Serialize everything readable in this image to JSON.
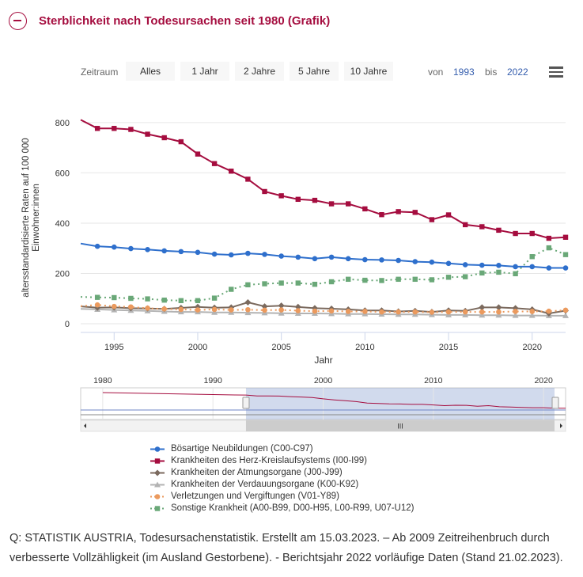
{
  "title": "Sterblichkeit nach Todesursachen seit 1980 (Grafik)",
  "range_selector": {
    "label": "Zeitraum",
    "buttons": [
      "Alles",
      "1 Jahr",
      "2 Jahre",
      "5 Jahre",
      "10 Jahre"
    ],
    "from_label": "von",
    "from_value": "1993",
    "to_label": "bis",
    "to_value": "2022"
  },
  "chart_data": {
    "type": "line",
    "xlabel": "Jahr",
    "ylabel": "altersstandardisierte Raten auf 100 000 Einwohner:innen",
    "xlim": [
      1993,
      2022
    ],
    "ylim": [
      0,
      850
    ],
    "x_ticks": [
      1995,
      2000,
      2005,
      2010,
      2015,
      2020
    ],
    "y_ticks": [
      0,
      200,
      400,
      600,
      800
    ],
    "x": [
      1993,
      1994,
      1995,
      1996,
      1997,
      1998,
      1999,
      2000,
      2001,
      2002,
      2003,
      2004,
      2005,
      2006,
      2007,
      2008,
      2009,
      2010,
      2011,
      2012,
      2013,
      2014,
      2015,
      2016,
      2017,
      2018,
      2019,
      2020,
      2021,
      2022
    ],
    "series": [
      {
        "name": "Bösartige Neubildungen (C00-C97)",
        "color": "#2e6fcc",
        "marker": "circle",
        "dash": false,
        "values": [
          322,
          311,
          308,
          302,
          298,
          293,
          290,
          287,
          280,
          277,
          283,
          279,
          272,
          268,
          262,
          268,
          262,
          258,
          257,
          255,
          250,
          248,
          243,
          238,
          236,
          235,
          230,
          230,
          225,
          225
        ]
      },
      {
        "name": "Krankheiten des Herz-Kreislaufsystems (I00-I99)",
        "color": "#a50d3f",
        "marker": "square",
        "dash": false,
        "values": [
          814,
          780,
          780,
          776,
          757,
          743,
          727,
          678,
          640,
          610,
          578,
          529,
          512,
          498,
          494,
          480,
          480,
          460,
          437,
          449,
          446,
          417,
          436,
          397,
          389,
          375,
          362,
          362,
          343,
          347
        ]
      },
      {
        "name": "Krankheiten der Atmungsorgane (J00-J99)",
        "color": "#7b6a5e",
        "marker": "diamond",
        "dash": false,
        "values": [
          72,
          67,
          68,
          65,
          64,
          62,
          66,
          70,
          67,
          68,
          88,
          72,
          75,
          70,
          65,
          63,
          60,
          56,
          56,
          52,
          54,
          50,
          56,
          54,
          68,
          68,
          65,
          60,
          44,
          55
        ]
      },
      {
        "name": "Krankheiten der Verdauungsorgane (K00-K92)",
        "color": "#b3b3b3",
        "marker": "triangle",
        "dash": false,
        "values": [
          62,
          60,
          58,
          56,
          54,
          52,
          50,
          50,
          48,
          48,
          47,
          46,
          45,
          44,
          44,
          43,
          42,
          42,
          41,
          40,
          40,
          39,
          38,
          38,
          37,
          37,
          36,
          36,
          35,
          35
        ]
      },
      {
        "name": "Verletzungen und Vergiftungen (V01-Y89)",
        "color": "#eb9a5e",
        "marker": "circle",
        "dash": true,
        "values": [
          73,
          78,
          72,
          70,
          65,
          62,
          60,
          58,
          60,
          58,
          59,
          57,
          58,
          55,
          53,
          54,
          52,
          52,
          50,
          50,
          50,
          49,
          50,
          50,
          50,
          50,
          52,
          52,
          53,
          57
        ]
      },
      {
        "name": "Sonstige Krankheit (A00-B99, D00-H95, L00-R99, U07-U12)",
        "color": "#6aa878",
        "marker": "square",
        "dash": true,
        "values": [
          110,
          108,
          107,
          104,
          102,
          97,
          95,
          95,
          105,
          140,
          158,
          162,
          165,
          165,
          160,
          170,
          180,
          176,
          175,
          180,
          180,
          178,
          188,
          190,
          205,
          208,
          202,
          270,
          305,
          278
        ]
      }
    ]
  },
  "navigator": {
    "ticks": [
      "1980",
      "1990",
      "2000",
      "2010",
      "2020"
    ],
    "scroll_grip": "III"
  },
  "source": "Q: STATISTIK AUSTRIA, Todesursachenstatistik. Erstellt am 15.03.2023. – Ab 2009 Zeitreihenbruch durch verbesserte Vollzähligkeit (im Ausland Gestorbene). - Berichtsjahr 2022 vorläufige Daten (Stand 21.02.2023)."
}
